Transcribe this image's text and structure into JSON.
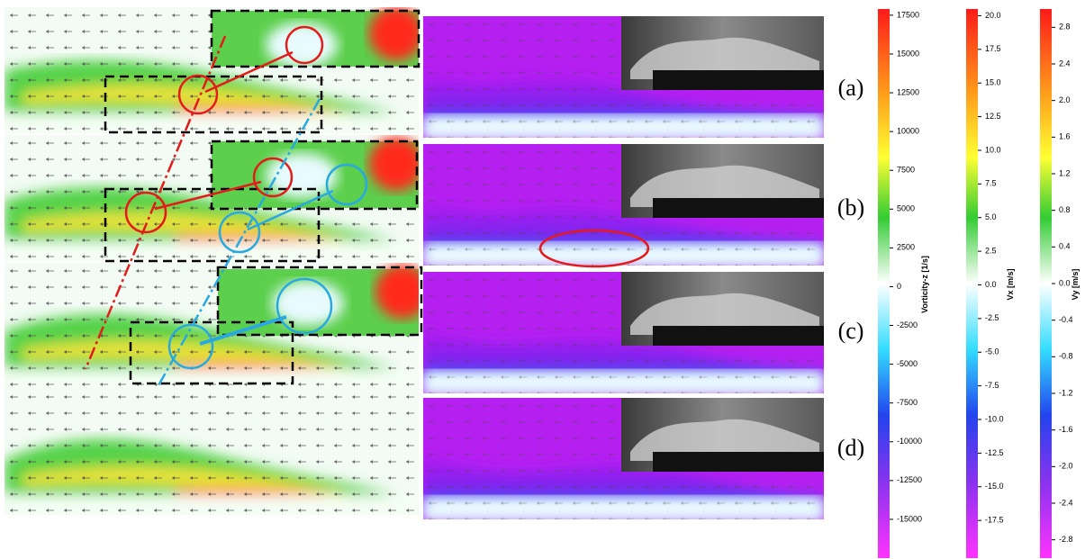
{
  "panel_labels": [
    "(a)",
    "(b)",
    "(c)",
    "(d)"
  ],
  "colorbars": [
    {
      "label": "Vorticity-z [1/s]",
      "lim": [
        -17500,
        17900
      ],
      "ticks": [
        17500,
        15000,
        12500,
        10000,
        7500,
        5000,
        2500,
        0,
        -2500,
        -5000,
        -7500,
        -10000,
        -12500,
        -15000
      ]
    },
    {
      "label": "Vx [m/s]",
      "lim": [
        -20.3,
        20.5
      ],
      "ticks": [
        {
          "value": 20,
          "label": "20.0"
        },
        17.5,
        {
          "value": 15,
          "label": "15.0"
        },
        12.5,
        {
          "value": 10,
          "label": "10.0"
        },
        7.5,
        {
          "value": 5,
          "label": "5.0"
        },
        2.5,
        {
          "value": 0,
          "label": "0.0"
        },
        -2.5,
        {
          "value": -5,
          "label": "-5.0"
        },
        -7.5,
        {
          "value": -10,
          "label": "-10.0"
        },
        -12.5,
        {
          "value": -15,
          "label": "-15.0"
        },
        -17.5
      ]
    },
    {
      "label": "Vy [m/s]",
      "lim": [
        -3,
        3
      ],
      "ticks": [
        2.8,
        2.4,
        {
          "value": 2,
          "label": "2.0"
        },
        1.6,
        1.2,
        0.8,
        0.4,
        {
          "value": 0,
          "label": "0.0"
        },
        -0.4,
        -0.8,
        -1.2,
        -1.6,
        {
          "value": -2,
          "label": "-2.0"
        },
        -2.4,
        -2.8
      ]
    }
  ]
}
